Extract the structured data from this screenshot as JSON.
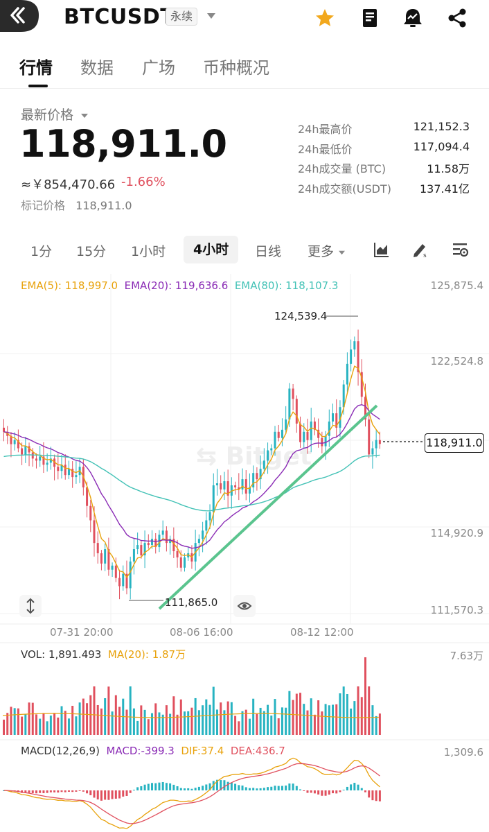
{
  "header": {
    "symbol": "BTCUSDT",
    "badge": "永续"
  },
  "tabs": [
    {
      "label": "行情",
      "active": true
    },
    {
      "label": "数据",
      "active": false
    },
    {
      "label": "广场",
      "active": false
    },
    {
      "label": "币种概况",
      "active": false
    }
  ],
  "price": {
    "label": "最新价格",
    "last": "118,911.0",
    "cny": "≈￥854,470.66",
    "change": "-1.66%",
    "mark_label": "标记价格",
    "mark_value": "118,911.0"
  },
  "stats": [
    {
      "label": "24h最高价",
      "value": "121,152.3"
    },
    {
      "label": "24h最低价",
      "value": "117,094.4"
    },
    {
      "label": "24h成交量 (BTC)",
      "value": "11.58万"
    },
    {
      "label": "24h成交额(USDT)",
      "value": "137.41亿"
    }
  ],
  "intervals": {
    "i1": "1分",
    "i2": "15分",
    "i3": "1小时",
    "i4": "4小时",
    "i5": "日线",
    "more": "更多"
  },
  "ema": {
    "ema5": "EMA(5): 118,997.0",
    "ema20": "EMA(20): 119,636.6",
    "ema80": "EMA(80): 118,107.3"
  },
  "price_axis": {
    "t1": "125,875.4",
    "t2": "122,524.8",
    "t3": "114,920.9",
    "t4": "111,570.3"
  },
  "markers": {
    "high": "124,539.4",
    "low": "111,865.0",
    "current": "118,911.0"
  },
  "time_axis": {
    "t1": "07-31 20:00",
    "t2": "08-06 16:00",
    "t3": "08-12 12:00"
  },
  "volume": {
    "label": "VOL: 1,891.493",
    "ma": "MA(20): 1.87万",
    "max": "7.63万"
  },
  "macd": {
    "label": "MACD(12,26,9)",
    "macd": "MACD:-399.3",
    "dif": "DIF:37.4",
    "dea": "DEA:436.7",
    "max": "1,309.6"
  },
  "colors": {
    "up": "#27b3c1",
    "down": "#e0505e",
    "ema5": "#e8a20c",
    "ema20": "#8a2bb5",
    "ema80": "#43c2b6",
    "trend": "#5ac48e",
    "star": "#f2a81d"
  },
  "icons": {
    "back": "back-arrow-icon",
    "favorite": "star-icon",
    "book": "notebook-icon",
    "alert": "price-alert-icon",
    "share": "share-icon"
  },
  "chart_data": {
    "type": "candlestick",
    "interval": "4h",
    "ylim": [
      110500,
      126500
    ],
    "x_ticks": [
      "07-31 20:00",
      "08-06 16:00",
      "08-12 12:00"
    ],
    "y_ticks": [
      125875.4,
      122524.8,
      114920.9,
      111570.3
    ],
    "last_price": 118911.0,
    "period_high": 124539.4,
    "period_low": 111865.0,
    "ema_last": {
      "EMA5": 118997.0,
      "EMA20": 119636.6,
      "EMA80": 118107.3
    },
    "close": [
      119500,
      119300,
      118900,
      119100,
      118700,
      118400,
      118800,
      118500,
      118200,
      118100,
      118300,
      117900,
      118000,
      118200,
      117800,
      117600,
      117900,
      117400,
      117700,
      117300,
      117400,
      117800,
      116800,
      115900,
      115200,
      114100,
      113600,
      113100,
      113800,
      112800,
      113000,
      112400,
      112000,
      112600,
      111900,
      113200,
      113800,
      114000,
      113500,
      114100,
      114000,
      114300,
      113900,
      114500,
      114700,
      114100,
      114300,
      113700,
      113400,
      112900,
      113400,
      113600,
      113200,
      114100,
      114300,
      114700,
      115200,
      115600,
      116900,
      117000,
      116700,
      117100,
      116400,
      116900,
      116800,
      116700,
      117200,
      116500,
      116800,
      117500,
      117200,
      117700,
      118100,
      118600,
      118700,
      119500,
      119200,
      119600,
      120100,
      121600,
      121100,
      119900,
      119000,
      119500,
      119100,
      120000,
      119600,
      119200,
      118800,
      119300,
      120000,
      120400,
      119700,
      120700,
      121800,
      122800,
      123500,
      123900,
      122400,
      121200,
      120100,
      118400,
      118700,
      119100,
      118911
    ],
    "ema5_last": 118997.0,
    "volume_max": 76300,
    "volume_last": 1891.493,
    "volume_ma20": 18700,
    "macd_last": {
      "MACD": -399.3,
      "DIF": 37.4,
      "DEA": 436.7
    },
    "macd_max": 1309.6
  }
}
